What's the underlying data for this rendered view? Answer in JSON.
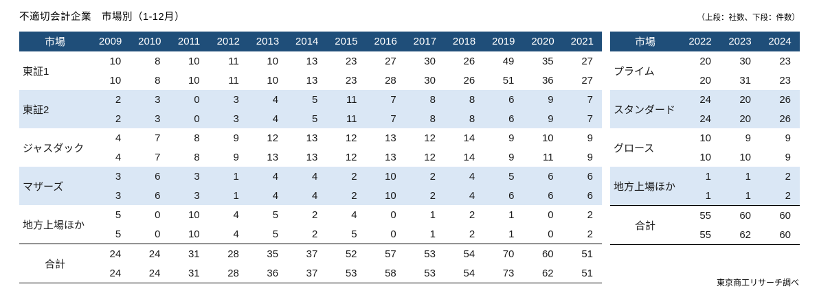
{
  "title": "不適切会計企業　市場別（1-12月）",
  "note": "（上段：社数、下段：件数）",
  "footer": "東京商工リサーチ調べ",
  "colors": {
    "header_bg": "#1F4E79",
    "header_text": "#FFFFFF",
    "band_bg": "#DAE7F5",
    "body_text": "#1A1A1A"
  },
  "legend_meaning": {
    "upper_row": "社数",
    "lower_row": "件数"
  },
  "left_table": {
    "market_header": "市場",
    "years": [
      "2009",
      "2010",
      "2011",
      "2012",
      "2013",
      "2014",
      "2015",
      "2016",
      "2017",
      "2018",
      "2019",
      "2020",
      "2021"
    ],
    "rows": [
      {
        "label": "東証1",
        "band": false,
        "total": false,
        "upper": [
          10,
          8,
          10,
          11,
          10,
          13,
          23,
          27,
          30,
          26,
          49,
          35,
          27
        ],
        "lower": [
          10,
          8,
          10,
          11,
          10,
          13,
          23,
          28,
          30,
          26,
          51,
          36,
          27
        ]
      },
      {
        "label": "東証2",
        "band": true,
        "total": false,
        "upper": [
          2,
          3,
          0,
          3,
          4,
          5,
          11,
          7,
          8,
          8,
          6,
          9,
          7
        ],
        "lower": [
          2,
          3,
          0,
          3,
          4,
          5,
          11,
          7,
          8,
          8,
          6,
          9,
          7
        ]
      },
      {
        "label": "ジャスダック",
        "band": false,
        "total": false,
        "upper": [
          4,
          7,
          8,
          9,
          12,
          13,
          12,
          13,
          12,
          14,
          9,
          10,
          9
        ],
        "lower": [
          4,
          7,
          8,
          9,
          13,
          13,
          12,
          13,
          12,
          14,
          9,
          11,
          9
        ]
      },
      {
        "label": "マザーズ",
        "band": true,
        "total": false,
        "upper": [
          3,
          6,
          3,
          1,
          4,
          4,
          2,
          10,
          2,
          4,
          5,
          6,
          6
        ],
        "lower": [
          3,
          6,
          3,
          1,
          4,
          4,
          2,
          10,
          2,
          4,
          6,
          6,
          6
        ]
      },
      {
        "label": "地方上場ほか",
        "band": false,
        "total": false,
        "upper": [
          5,
          0,
          10,
          4,
          5,
          2,
          4,
          0,
          1,
          2,
          1,
          0,
          2
        ],
        "lower": [
          5,
          0,
          10,
          4,
          5,
          2,
          5,
          0,
          1,
          2,
          1,
          0,
          2
        ]
      },
      {
        "label": "合計",
        "band": false,
        "total": true,
        "upper": [
          24,
          24,
          31,
          28,
          35,
          37,
          52,
          57,
          53,
          54,
          70,
          60,
          51
        ],
        "lower": [
          24,
          24,
          31,
          28,
          36,
          37,
          53,
          58,
          53,
          54,
          73,
          62,
          51
        ]
      }
    ]
  },
  "right_table": {
    "market_header": "市場",
    "years": [
      "2022",
      "2023",
      "2024"
    ],
    "rows": [
      {
        "label": "プライム",
        "band": false,
        "total": false,
        "upper": [
          20,
          30,
          23
        ],
        "lower": [
          20,
          31,
          23
        ]
      },
      {
        "label": "スタンダード",
        "band": true,
        "total": false,
        "upper": [
          24,
          20,
          26
        ],
        "lower": [
          24,
          20,
          26
        ]
      },
      {
        "label": "グロース",
        "band": false,
        "total": false,
        "upper": [
          10,
          9,
          9
        ],
        "lower": [
          10,
          10,
          9
        ]
      },
      {
        "label": "地方上場ほか",
        "band": true,
        "total": false,
        "upper": [
          1,
          1,
          2
        ],
        "lower": [
          1,
          1,
          2
        ]
      },
      {
        "label": "合計",
        "band": false,
        "total": true,
        "upper": [
          55,
          60,
          60
        ],
        "lower": [
          55,
          62,
          60
        ]
      }
    ]
  }
}
